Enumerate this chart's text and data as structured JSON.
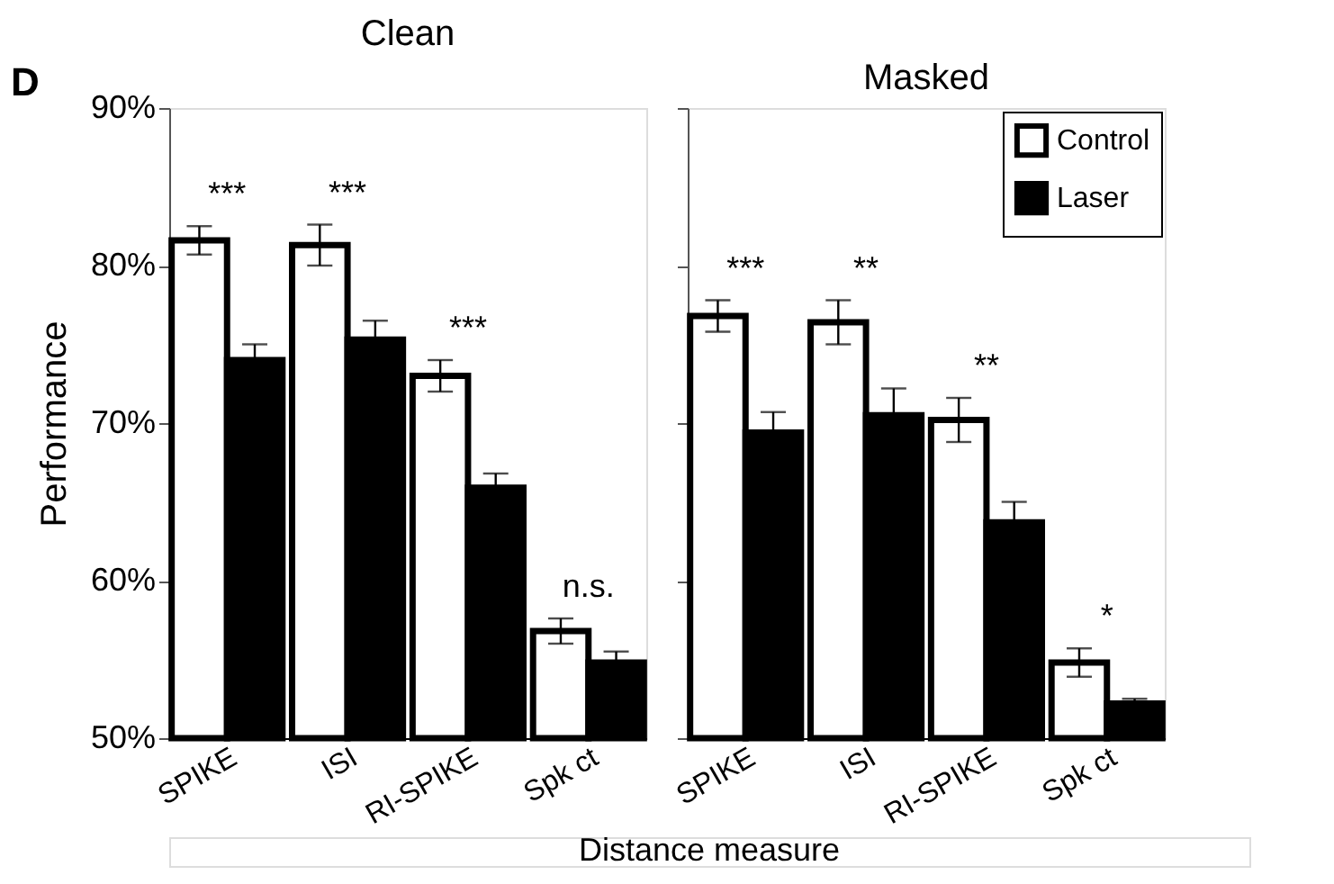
{
  "chart_data": [
    {
      "type": "bar",
      "title": "Clean",
      "ylabel": "Performance",
      "xlabel": "Distance measure",
      "categories": [
        "SPIKE",
        "ISI",
        "RI-SPIKE",
        "Spk ct"
      ],
      "series": [
        {
          "color": "#ffffff",
          "values": [
            81.6,
            81.3,
            73.0,
            56.8
          ],
          "errors": [
            0.9,
            1.3,
            1.0,
            0.8
          ]
        },
        {
          "color": "#000000",
          "values": [
            74.0,
            75.3,
            65.9,
            54.8
          ],
          "errors": [
            1.0,
            1.2,
            0.9,
            0.7
          ]
        }
      ],
      "ylim": [
        50,
        90
      ],
      "yticks": [
        {
          "value": 50,
          "label": "50%"
        },
        {
          "value": 60,
          "label": "60%"
        },
        {
          "value": 70,
          "label": "70%"
        },
        {
          "value": 80,
          "label": "80%"
        },
        {
          "value": 90,
          "label": "90%"
        }
      ],
      "annotations": [
        "D",
        "***",
        "***",
        "***",
        "n.s."
      ],
      "grid": false
    },
    {
      "type": "bar",
      "title": "Masked",
      "categories": [
        "SPIKE",
        "ISI",
        "RI-SPIKE",
        "Spk ct"
      ],
      "series": [
        {
          "name": "Control",
          "color": "#ffffff",
          "values": [
            76.8,
            76.4,
            70.2,
            54.8
          ],
          "errors": [
            1.0,
            1.4,
            1.4,
            0.9
          ]
        },
        {
          "name": "Laser",
          "color": "#000000",
          "values": [
            69.4,
            70.5,
            63.7,
            52.2
          ],
          "errors": [
            1.3,
            1.7,
            1.3,
            0.3
          ]
        }
      ],
      "ylim": [
        50,
        90
      ],
      "yticks": [
        {
          "value": 50,
          "label": null
        },
        {
          "value": 60,
          "label": null
        },
        {
          "value": 70,
          "label": null
        },
        {
          "value": 80,
          "label": null
        },
        {
          "value": 90,
          "label": null
        }
      ],
      "annotations": [
        "***",
        "**",
        "**",
        "*"
      ],
      "grid": false,
      "legend": "top right",
      "tick_labels": "x"
    }
  ]
}
